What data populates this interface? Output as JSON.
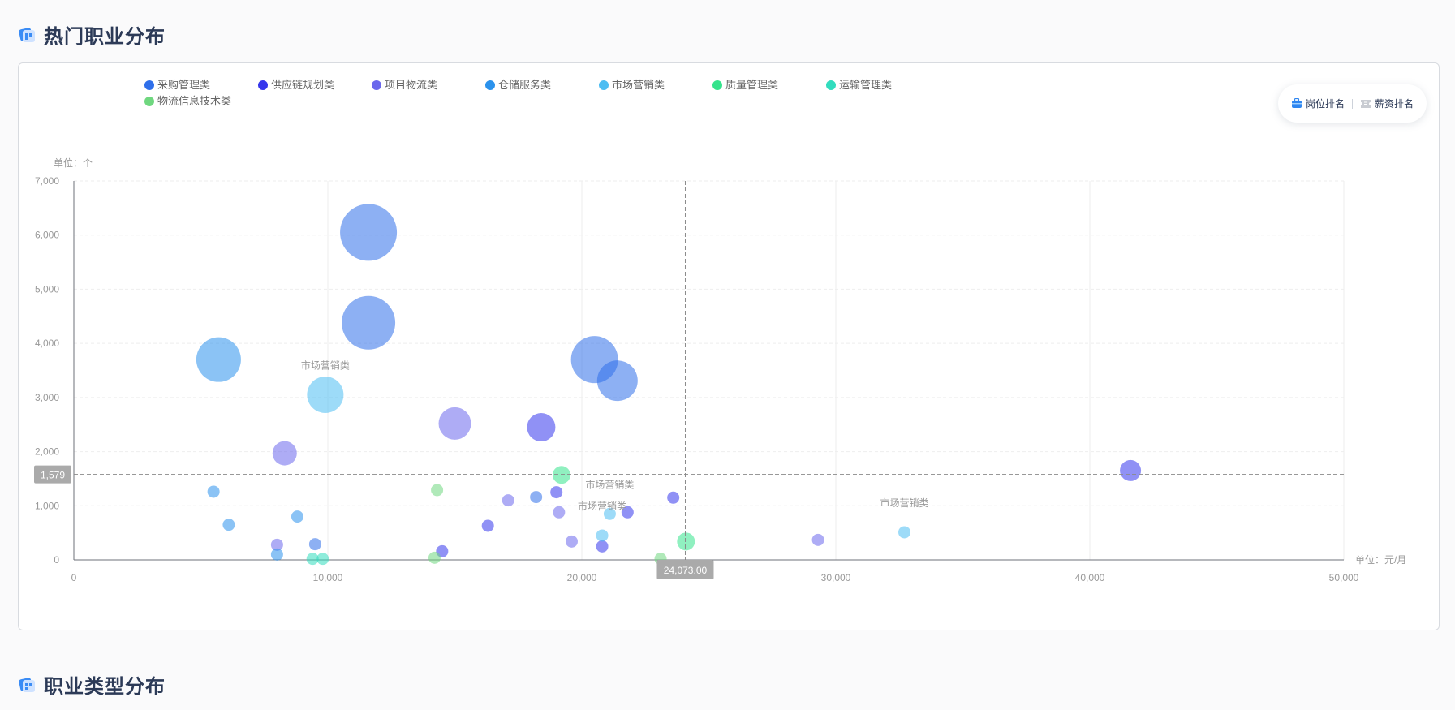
{
  "sections": {
    "hot_jobs_title": "热门职业分布",
    "job_types_title": "职业类型分布"
  },
  "toggle": {
    "post_rank": "岗位排名",
    "salary_rank": "薪资排名"
  },
  "colors": {
    "title": "#2c3a57",
    "axis_text": "#999999",
    "grid": "#eeeeee",
    "crosshair_label_bg": "#aaaaaa"
  },
  "chart_data": {
    "type": "scatter",
    "bubble": true,
    "y_unit_label": "单位：个",
    "x_unit_label": "单位：元/月",
    "xlim": [
      0,
      50000
    ],
    "ylim": [
      0,
      7000
    ],
    "x_ticks": [
      "0",
      "10,000",
      "20,000",
      "30,000",
      "40,000",
      "50,000"
    ],
    "y_ticks": [
      "0",
      "1,000",
      "2,000",
      "3,000",
      "4,000",
      "5,000",
      "6,000",
      "7,000"
    ],
    "grid": true,
    "legend_position": "top-left",
    "crosshair": {
      "x": 24073,
      "y": 1579,
      "x_label": "24,073.00",
      "y_label": "1,579"
    },
    "series": [
      {
        "name": "采购管理类",
        "color": "#2f6fea",
        "points": [
          [
            11600,
            6050
          ],
          [
            11600,
            4380
          ],
          [
            20500,
            3700
          ],
          [
            21400,
            3310
          ],
          [
            18200,
            1160
          ],
          [
            9500,
            290
          ]
        ]
      },
      {
        "name": "供应链规划类",
        "color": "#3536ec",
        "points": [
          [
            18400,
            2450
          ],
          [
            41600,
            1650
          ],
          [
            23600,
            1150
          ],
          [
            19000,
            1250
          ],
          [
            16300,
            630
          ],
          [
            21800,
            880
          ],
          [
            20800,
            250
          ],
          [
            14500,
            160
          ]
        ]
      },
      {
        "name": "项目物流类",
        "color": "#6b68ec",
        "points": [
          [
            15000,
            2520
          ],
          [
            8300,
            1970
          ],
          [
            17100,
            1100
          ],
          [
            19100,
            880
          ],
          [
            29300,
            370
          ],
          [
            19600,
            340
          ],
          [
            8000,
            280
          ]
        ]
      },
      {
        "name": "仓储服务类",
        "color": "#2b92ec",
        "points": [
          [
            5700,
            3700
          ],
          [
            5500,
            1260
          ],
          [
            6100,
            650
          ],
          [
            8800,
            800
          ],
          [
            8000,
            100
          ]
        ]
      },
      {
        "name": "市场营销类",
        "color": "#4dbdf2",
        "points": [
          [
            9900,
            3050
          ],
          [
            21100,
            850
          ],
          [
            20800,
            450
          ],
          [
            32700,
            510
          ]
        ]
      },
      {
        "name": "质量管理类",
        "color": "#35e38c",
        "points": [
          [
            19200,
            1570
          ],
          [
            24100,
            340
          ]
        ]
      },
      {
        "name": "运输管理类",
        "color": "#32dcbe",
        "points": [
          [
            9800,
            20
          ],
          [
            9400,
            20
          ]
        ]
      },
      {
        "name": "物流信息技术类",
        "color": "#6fd77f",
        "points": [
          [
            14300,
            1290
          ],
          [
            14200,
            40
          ],
          [
            23100,
            20
          ]
        ]
      }
    ],
    "point_labels": [
      {
        "text": "市场营销类",
        "x": 9900,
        "y": 3050
      },
      {
        "text": "市场营销类",
        "x": 21100,
        "y": 850
      },
      {
        "text": "市场营销类",
        "x": 20800,
        "y": 450
      },
      {
        "text": "市场营销类",
        "x": 32700,
        "y": 510
      }
    ],
    "bubble_sizes": {
      "采购管理类": [
        70,
        66,
        58,
        50,
        15,
        15
      ],
      "供应链规划类": [
        35,
        26,
        15,
        15,
        15,
        15,
        15,
        15
      ],
      "项目物流类": [
        40,
        30,
        15,
        15,
        15,
        15,
        15
      ],
      "仓储服务类": [
        55,
        15,
        15,
        15,
        15
      ],
      "市场营销类": [
        45,
        15,
        15,
        15
      ],
      "质量管理类": [
        22,
        22
      ],
      "运输管理类": [
        15,
        15
      ],
      "物流信息技术类": [
        15,
        15,
        15
      ]
    }
  }
}
